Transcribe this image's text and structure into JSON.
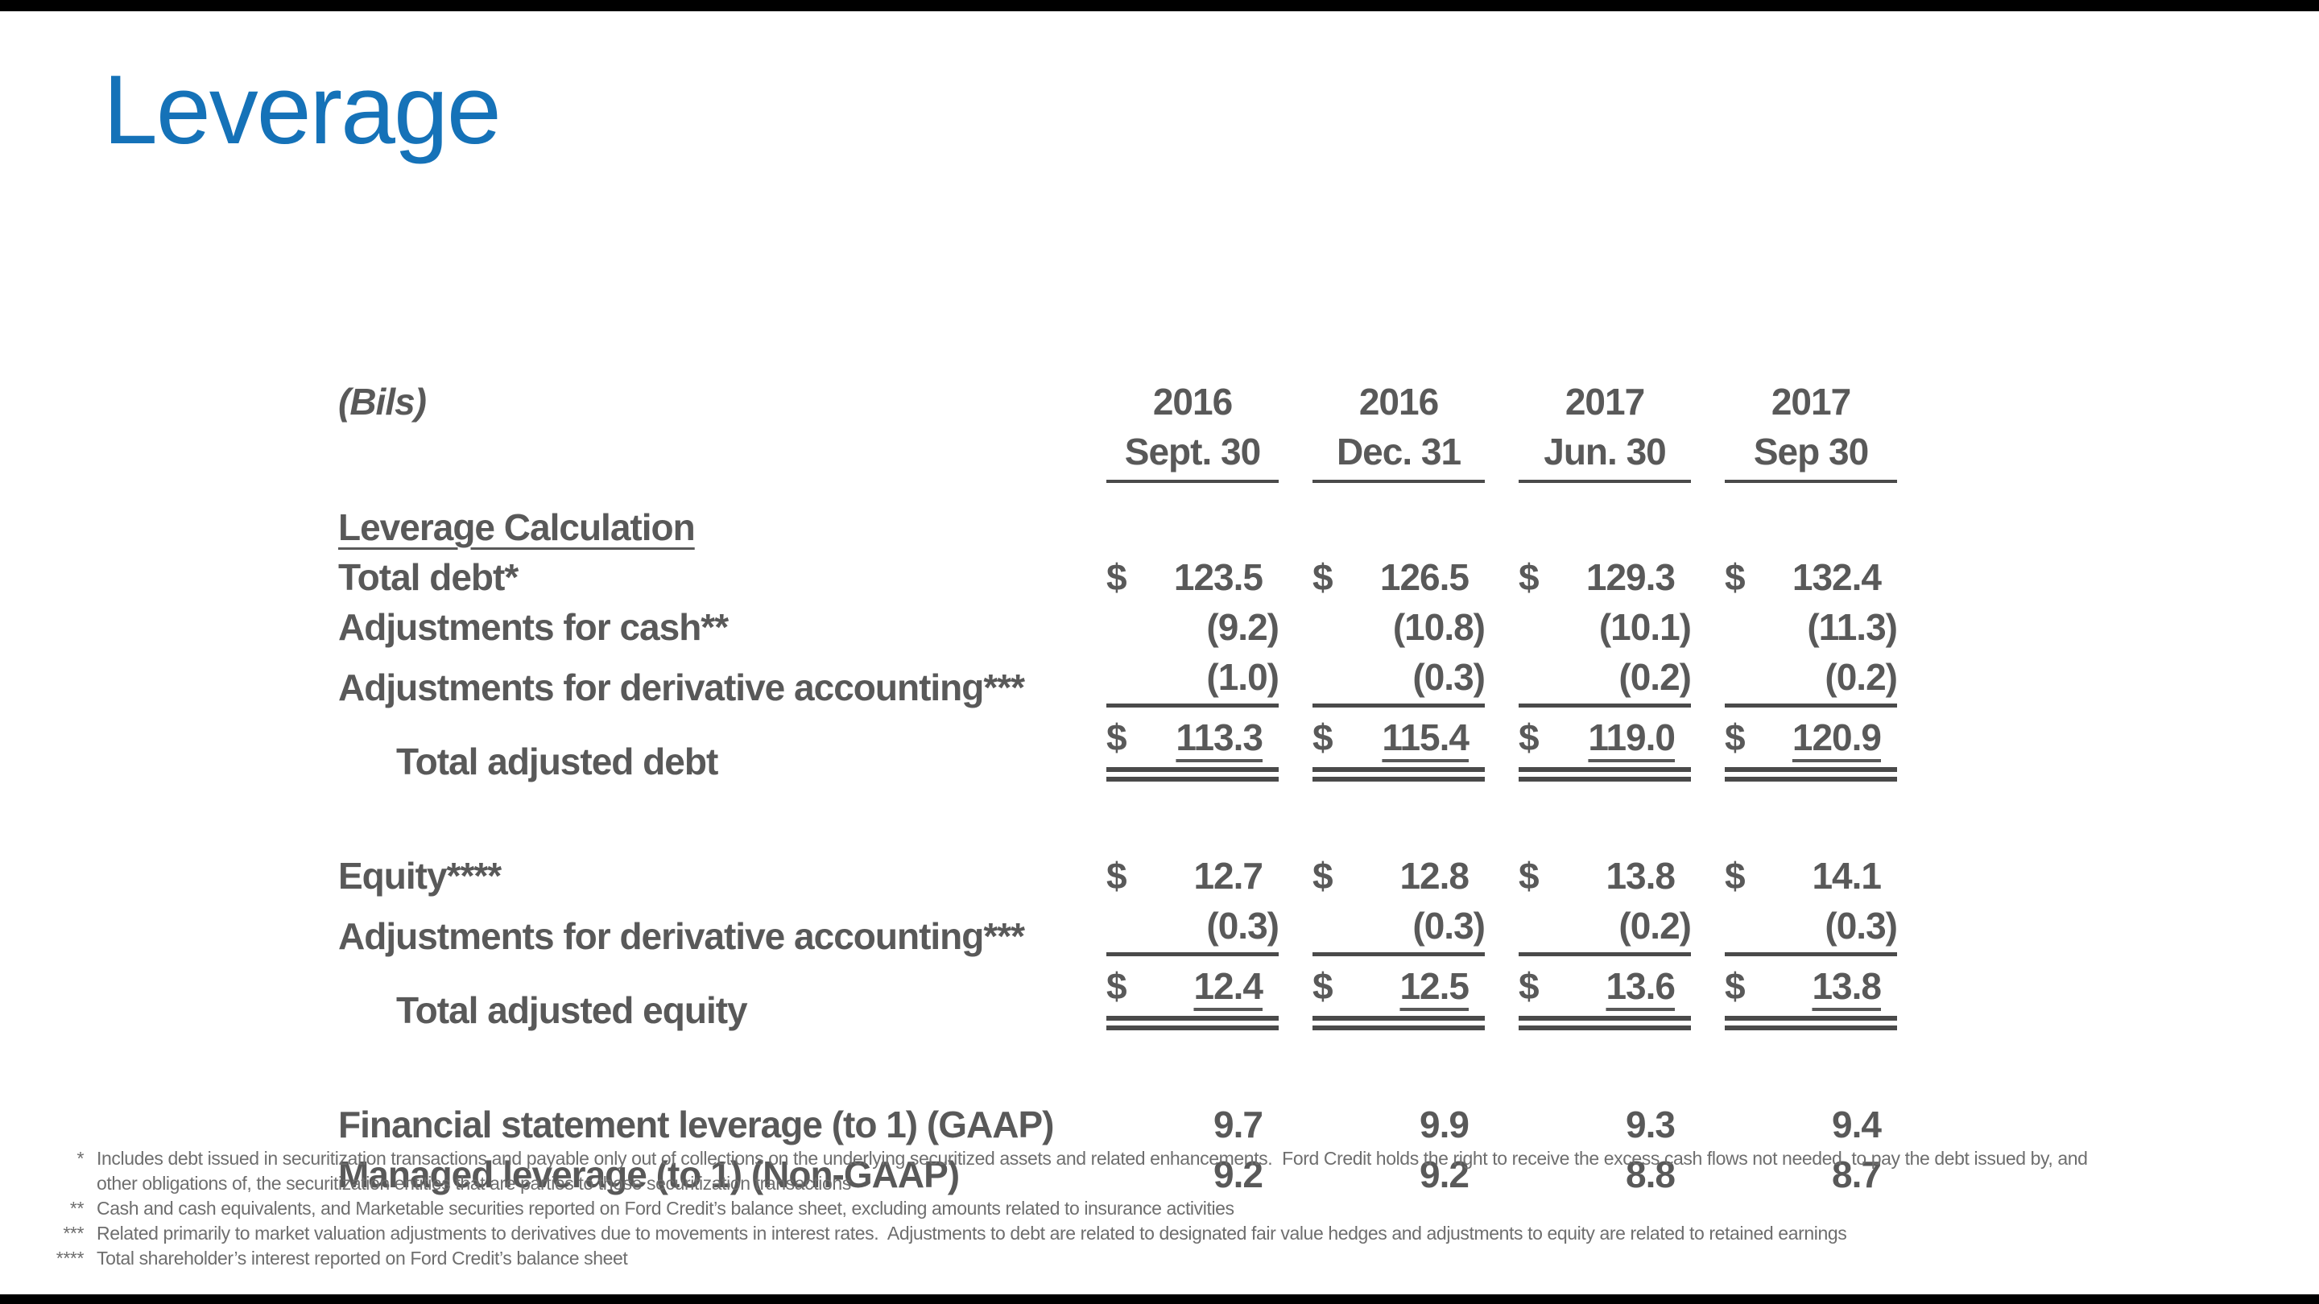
{
  "title": "Leverage",
  "colors": {
    "accent_blue": "#1572b8",
    "table_text_gray": "#595959",
    "rule_gray": "#4a4a4a",
    "footnote_gray": "#6e6e6e",
    "bar_black": "#000000"
  },
  "table": {
    "unit_label": "(Bils)",
    "section_header": "Leverage Calculation",
    "columns": [
      {
        "year": "2016",
        "date": "Sept. 30"
      },
      {
        "year": "2016",
        "date": "Dec. 31"
      },
      {
        "year": "2017",
        "date": "Jun. 30"
      },
      {
        "year": "2017",
        "date": "Sep 30"
      }
    ],
    "rows": [
      {
        "label": "Total debt*",
        "cells": [
          {
            "cur": "$",
            "val": "123.5"
          },
          {
            "cur": "$",
            "val": "126.5"
          },
          {
            "cur": "$",
            "val": "129.3"
          },
          {
            "cur": "$",
            "val": "132.4"
          }
        ]
      },
      {
        "label": "Adjustments for cash**",
        "cells": [
          {
            "cur": "",
            "val": "(9.2)"
          },
          {
            "cur": "",
            "val": "(10.8)"
          },
          {
            "cur": "",
            "val": "(10.1)"
          },
          {
            "cur": "",
            "val": "(11.3)"
          }
        ]
      },
      {
        "label": "Adjustments for derivative accounting***",
        "cells": [
          {
            "cur": "",
            "val": "(1.0)"
          },
          {
            "cur": "",
            "val": "(0.3)"
          },
          {
            "cur": "",
            "val": "(0.2)"
          },
          {
            "cur": "",
            "val": "(0.2)"
          }
        ]
      },
      {
        "label": "Total adjusted debt",
        "cells": [
          {
            "cur": "$",
            "val": "113.3"
          },
          {
            "cur": "$",
            "val": "115.4"
          },
          {
            "cur": "$",
            "val": "119.0"
          },
          {
            "cur": "$",
            "val": "120.9"
          }
        ]
      },
      {
        "label": "Equity****",
        "cells": [
          {
            "cur": "$",
            "val": "12.7"
          },
          {
            "cur": "$",
            "val": "12.8"
          },
          {
            "cur": "$",
            "val": "13.8"
          },
          {
            "cur": "$",
            "val": "14.1"
          }
        ]
      },
      {
        "label": "Adjustments for derivative accounting***",
        "cells": [
          {
            "cur": "",
            "val": "(0.3)"
          },
          {
            "cur": "",
            "val": "(0.3)"
          },
          {
            "cur": "",
            "val": "(0.2)"
          },
          {
            "cur": "",
            "val": "(0.3)"
          }
        ]
      },
      {
        "label": "Total adjusted equity",
        "cells": [
          {
            "cur": "$",
            "val": "12.4"
          },
          {
            "cur": "$",
            "val": "12.5"
          },
          {
            "cur": "$",
            "val": "13.6"
          },
          {
            "cur": "$",
            "val": "13.8"
          }
        ]
      },
      {
        "label": "Financial statement leverage (to 1) (GAAP)",
        "cells": [
          {
            "cur": "",
            "val": "9.7"
          },
          {
            "cur": "",
            "val": "9.9"
          },
          {
            "cur": "",
            "val": "9.3"
          },
          {
            "cur": "",
            "val": "9.4"
          }
        ]
      },
      {
        "label": "Managed leverage (to 1) (Non-GAAP)",
        "cells": [
          {
            "cur": "",
            "val": "9.2"
          },
          {
            "cur": "",
            "val": "9.2"
          },
          {
            "cur": "",
            "val": "8.8"
          },
          {
            "cur": "",
            "val": "8.7"
          }
        ]
      }
    ]
  },
  "footnotes": [
    {
      "marker": "*",
      "text": "Includes debt issued in securitization transactions and payable only out of collections on the underlying securitized assets and related enhancements.  Ford Credit holds the right to receive the excess cash flows not needed  to pay the debt issued by, and"
    },
    {
      "marker": "",
      "text": "other obligations of, the securitization entities that are parties to those securitization transactions"
    },
    {
      "marker": "**",
      "text": "Cash and cash equivalents, and Marketable securities reported on Ford Credit’s balance sheet, excluding amounts related to insurance activities"
    },
    {
      "marker": "***",
      "text": "Related primarily to market valuation adjustments to derivatives due to movements in interest rates.  Adjustments to debt are related to designated fair value hedges and adjustments to equity are related to retained earnings"
    },
    {
      "marker": "****",
      "text": "Total shareholder’s interest reported on Ford Credit’s balance sheet"
    }
  ]
}
